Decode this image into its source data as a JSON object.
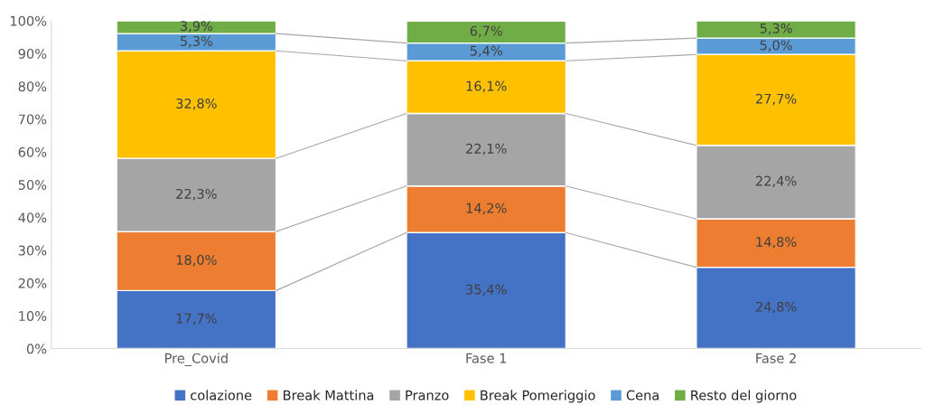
{
  "chart_data": {
    "type": "bar",
    "stacked": true,
    "categories": [
      "Pre_Covid",
      "Fase 1",
      "Fase 2"
    ],
    "series": [
      {
        "name": "colazione",
        "color": "#4472c4",
        "values": [
          17.7,
          35.4,
          24.8
        ],
        "value_labels": [
          "17,7%",
          "35,4%",
          "24,8%"
        ]
      },
      {
        "name": "Break Mattina",
        "color": "#ed7d31",
        "values": [
          18.0,
          14.2,
          14.8
        ],
        "value_labels": [
          "18,0%",
          "14,2%",
          "14,8%"
        ]
      },
      {
        "name": "Pranzo",
        "color": "#a5a5a5",
        "values": [
          22.3,
          22.1,
          22.4
        ],
        "value_labels": [
          "22,3%",
          "22,1%",
          "22,4%"
        ]
      },
      {
        "name": "Break Pomeriggio",
        "color": "#ffc000",
        "values": [
          32.8,
          16.1,
          27.7
        ],
        "value_labels": [
          "32,8%",
          "16,1%",
          "27,7%"
        ]
      },
      {
        "name": "Cena",
        "color": "#5b9bd5",
        "values": [
          5.3,
          5.4,
          5.0
        ],
        "value_labels": [
          "5,3%",
          "5,4%",
          "5,0%"
        ]
      },
      {
        "name": "Resto del giorno",
        "color": "#70ad47",
        "values": [
          3.9,
          6.7,
          5.3
        ],
        "value_labels": [
          "3,9%",
          "6,7%",
          "5,3%"
        ]
      }
    ],
    "ylim": [
      0,
      100
    ],
    "yticks": [
      {
        "value": 0,
        "label": "0%"
      },
      {
        "value": 10,
        "label": "10%"
      },
      {
        "value": 20,
        "label": "20%"
      },
      {
        "value": 30,
        "label": "30%"
      },
      {
        "value": 40,
        "label": "40%"
      },
      {
        "value": 50,
        "label": "50%"
      },
      {
        "value": 60,
        "label": "60%"
      },
      {
        "value": 70,
        "label": "70%"
      },
      {
        "value": 80,
        "label": "80%"
      },
      {
        "value": 90,
        "label": "90%"
      },
      {
        "value": 100,
        "label": "100%"
      }
    ],
    "legend": "bottom"
  }
}
